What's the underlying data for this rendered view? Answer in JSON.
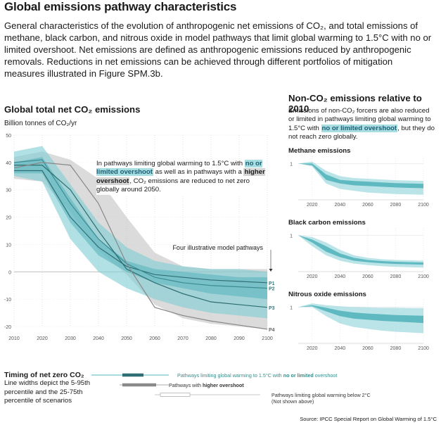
{
  "header": {
    "title": "Global emissions pathway characteristics",
    "description": "General characteristics of the evolution of anthropogenic net emissions of CO₂, and total emissions of methane, black carbon, and nitrous oxide in model pathways that limit global warming to 1.5°C with no or limited overshoot. Net emissions are defined as anthropogenic emissions reduced by anthropogenic removals. Reductions in net emissions can be achieved through different portfolios of mitigation measures illustrated in Figure SPM.3b."
  },
  "main": {
    "title": "Global total net CO₂ emissions",
    "unit": "Billion tonnes of CO₂/yr",
    "annotation": {
      "part1": "In pathways limiting global warming to 1.5°C with ",
      "hl1": "no or limited overshoot",
      "part2": " as well as in pathways with a ",
      "hl2": "higher overshoot",
      "part3": ", CO₂ emissions are reduced to net zero globally around 2050."
    },
    "pathways_label": "Four illustrative model pathways"
  },
  "nonco2": {
    "title": "Non-CO₂ emissions relative to 2010",
    "desc_part1": "Emissions of non-CO₂ forcers are also reduced or limited in pathways limiting global warming to 1.5°C with ",
    "desc_hl": "no or limited overshoot",
    "desc_part2": ", but they do not reach zero globally."
  },
  "timing": {
    "title": "Timing of net zero CO₂",
    "desc": "Line widths depict the 5-95th percentile and the 25-75th percentile of scenarios",
    "legend": [
      {
        "prefix": "Pathways limiting global warming to 1.5°C with ",
        "bold": "no or limited",
        "suffix": " overshoot",
        "color": "#3a8c8a"
      },
      {
        "prefix": "Pathways with ",
        "bold": "higher overshoot",
        "suffix": "",
        "color": "#555555"
      },
      {
        "prefix": "Pathways limiting global warming below 2°C",
        "bold": "",
        "suffix": "",
        "line2": "(Not shown above)",
        "color": "#555555"
      }
    ]
  },
  "source": "Source: IPCC Special Report on Global Warming of 1.5°C",
  "colors": {
    "teal": "#5bbcc4",
    "teal_dark": "#2f7f83",
    "grey": "#b3b3b3",
    "grey_dark": "#7a7a7a"
  },
  "chart_data": [
    {
      "type": "line",
      "title": "Global total net CO₂ emissions",
      "ylabel": "Billion tonnes of CO₂/yr",
      "xlim": [
        2010,
        2100
      ],
      "ylim": [
        -20,
        50
      ],
      "x_ticks": [
        2010,
        2020,
        2030,
        2040,
        2050,
        2060,
        2070,
        2080,
        2090,
        2100
      ],
      "y_ticks": [
        50,
        40,
        30,
        20,
        10,
        0,
        -10,
        -20
      ],
      "series": [
        {
          "name": "P1",
          "x": [
            2010,
            2020,
            2030,
            2040,
            2050,
            2060,
            2070,
            2080,
            2090,
            2100
          ],
          "values": [
            37,
            37,
            20,
            9,
            2,
            -1,
            -2,
            -3,
            -3.5,
            -4
          ]
        },
        {
          "name": "P2",
          "x": [
            2010,
            2020,
            2030,
            2040,
            2050,
            2060,
            2070,
            2080,
            2090,
            2100
          ],
          "values": [
            40,
            41,
            25,
            12,
            3,
            -2,
            -4,
            -5,
            -5.5,
            -6
          ]
        },
        {
          "name": "P3",
          "x": [
            2010,
            2020,
            2030,
            2040,
            2050,
            2060,
            2070,
            2080,
            2090,
            2100
          ],
          "values": [
            39,
            39,
            30,
            15,
            1,
            -4,
            -8,
            -11,
            -12,
            -13
          ]
        },
        {
          "name": "P4",
          "x": [
            2010,
            2020,
            2030,
            2040,
            2050,
            2060,
            2070,
            2080,
            2090,
            2100
          ],
          "values": [
            38,
            40,
            39,
            25,
            3,
            -13,
            -16,
            -18,
            -19.5,
            -21
          ]
        }
      ],
      "bands": [
        {
          "name": "Pathways with higher overshoot",
          "x": [
            2010,
            2020,
            2030,
            2040,
            2050,
            2060,
            2070,
            2080,
            2090,
            2100
          ],
          "low": [
            34,
            33,
            22,
            8,
            -1,
            -12,
            -17,
            -19,
            -20,
            -21
          ],
          "high": [
            42,
            44,
            41,
            34,
            20,
            7,
            2,
            1,
            1,
            1
          ]
        },
        {
          "name": "Pathways limiting global warming to 1.5°C with no or limited overshoot",
          "x": [
            2010,
            2020,
            2030,
            2040,
            2050,
            2060,
            2070,
            2080,
            2090,
            2100
          ],
          "low": [
            35,
            33,
            12,
            0,
            -6,
            -10,
            -13,
            -15,
            -16,
            -17
          ],
          "high": [
            44,
            46,
            32,
            18,
            9,
            4,
            2,
            1,
            1,
            0
          ]
        },
        {
          "name": "interquartile",
          "x": [
            2010,
            2020,
            2030,
            2040,
            2050,
            2060,
            2070,
            2080,
            2090,
            2100
          ],
          "low": [
            36,
            36,
            18,
            6,
            0,
            -4,
            -6,
            -8,
            -9,
            -10
          ],
          "high": [
            40,
            42,
            27,
            12,
            4,
            1,
            0,
            -1,
            -2,
            -2
          ]
        }
      ]
    },
    {
      "type": "area",
      "title": "Methane emissions",
      "xlim": [
        2010,
        2100
      ],
      "ylim": [
        0,
        1.2
      ],
      "x_ticks": [
        2020,
        2040,
        2060,
        2080,
        2100
      ],
      "y_ticks": [
        1
      ],
      "x": [
        2010,
        2020,
        2030,
        2040,
        2050,
        2060,
        2070,
        2080,
        2090,
        2100
      ],
      "band_outer": {
        "low": [
          1,
          0.92,
          0.45,
          0.3,
          0.25,
          0.2,
          0.18,
          0.16,
          0.15,
          0.14
        ],
        "high": [
          1,
          1.05,
          0.8,
          0.65,
          0.6,
          0.58,
          0.56,
          0.54,
          0.53,
          0.52
        ]
      },
      "band_inner": {
        "low": [
          1,
          0.95,
          0.55,
          0.45,
          0.4,
          0.38,
          0.36,
          0.34,
          0.33,
          0.32
        ],
        "high": [
          1,
          1,
          0.7,
          0.55,
          0.52,
          0.5,
          0.48,
          0.46,
          0.45,
          0.44
        ]
      }
    },
    {
      "type": "area",
      "title": "Black carbon emissions",
      "xlim": [
        2010,
        2100
      ],
      "ylim": [
        0,
        1.2
      ],
      "x_ticks": [
        2020,
        2040,
        2060,
        2080,
        2100
      ],
      "y_ticks": [
        1
      ],
      "x": [
        2010,
        2020,
        2030,
        2040,
        2050,
        2060,
        2070,
        2080,
        2090,
        2100
      ],
      "band_outer": {
        "low": [
          1,
          0.7,
          0.45,
          0.3,
          0.22,
          0.18,
          0.15,
          0.13,
          0.12,
          0.11
        ],
        "high": [
          1,
          0.95,
          0.8,
          0.6,
          0.45,
          0.38,
          0.34,
          0.32,
          0.31,
          0.3
        ]
      },
      "band_inner": {
        "low": [
          1,
          0.8,
          0.55,
          0.4,
          0.3,
          0.26,
          0.23,
          0.21,
          0.2,
          0.19
        ],
        "high": [
          1,
          0.88,
          0.7,
          0.5,
          0.38,
          0.32,
          0.29,
          0.27,
          0.26,
          0.25
        ]
      }
    },
    {
      "type": "area",
      "title": "Nitrous oxide emissions",
      "xlim": [
        2010,
        2100
      ],
      "ylim": [
        0,
        1.2
      ],
      "x_ticks": [
        2020,
        2040,
        2060,
        2080,
        2100
      ],
      "y_ticks": [
        1
      ],
      "x": [
        2010,
        2020,
        2030,
        2040,
        2050,
        2060,
        2070,
        2080,
        2090,
        2100
      ],
      "band_outer": {
        "low": [
          1,
          1,
          0.75,
          0.55,
          0.45,
          0.4,
          0.35,
          0.32,
          0.3,
          0.28
        ],
        "high": [
          1,
          1.1,
          1.05,
          1.02,
          1,
          0.99,
          0.98,
          0.98,
          0.97,
          0.97
        ]
      },
      "band_inner": {
        "low": [
          1,
          1.02,
          0.88,
          0.75,
          0.68,
          0.65,
          0.62,
          0.6,
          0.58,
          0.56
        ],
        "high": [
          1,
          1.05,
          0.98,
          0.9,
          0.85,
          0.82,
          0.8,
          0.78,
          0.77,
          0.76
        ]
      }
    }
  ]
}
